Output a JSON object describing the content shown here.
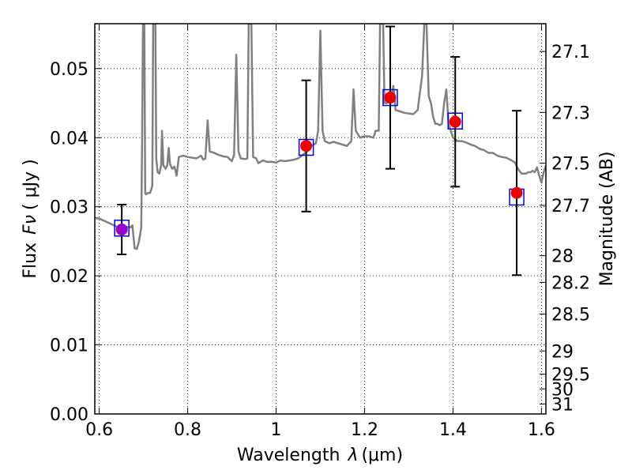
{
  "chart_data": {
    "type": "scatter",
    "title": "",
    "xlabel": "Wavelength",
    "xlabel_symbol": "λ",
    "xlabel_unit": "(μm)",
    "ylabel": "Flux",
    "ylabel_symbol": "Fν",
    "ylabel_unit": "( μJy )",
    "y2label": "Magnitude (AB)",
    "xlim": [
      0.59,
      1.61
    ],
    "ylim": [
      0.0,
      0.0565
    ],
    "grid": true,
    "x_ticks": [
      {
        "value": 0.6,
        "label": "0.6"
      },
      {
        "value": 0.8,
        "label": "0.8"
      },
      {
        "value": 1.0,
        "label": "1"
      },
      {
        "value": 1.2,
        "label": "1.2"
      },
      {
        "value": 1.4,
        "label": "1.4"
      },
      {
        "value": 1.6,
        "label": "1.6"
      }
    ],
    "y_ticks": [
      {
        "value": 0.0,
        "label": "0.00"
      },
      {
        "value": 0.01,
        "label": "0.01"
      },
      {
        "value": 0.02,
        "label": "0.02"
      },
      {
        "value": 0.03,
        "label": "0.03"
      },
      {
        "value": 0.04,
        "label": "0.04"
      },
      {
        "value": 0.05,
        "label": "0.05"
      }
    ],
    "mag_ticks": [
      {
        "value": 27.1,
        "label": "27.1"
      },
      {
        "value": 27.3,
        "label": "27.3"
      },
      {
        "value": 27.5,
        "label": "27.5"
      },
      {
        "value": 27.7,
        "label": "27.7"
      },
      {
        "value": 28.0,
        "label": "28"
      },
      {
        "value": 28.2,
        "label": "28.2"
      },
      {
        "value": 28.5,
        "label": "28.5"
      },
      {
        "value": 29.0,
        "label": "29"
      },
      {
        "value": 29.5,
        "label": "29.5"
      },
      {
        "value": 30.0,
        "label": "30"
      },
      {
        "value": 31.0,
        "label": "31"
      }
    ],
    "observed": [
      {
        "x": 0.651,
        "y": 0.0267,
        "yerr": 0.0036,
        "color": "#9900cc"
      },
      {
        "x": 1.068,
        "y": 0.0388,
        "yerr": 0.0095,
        "color": "#ee0000"
      },
      {
        "x": 1.258,
        "y": 0.0458,
        "yerr": 0.0103,
        "color": "#ee0000"
      },
      {
        "x": 1.405,
        "y": 0.0423,
        "yerr": 0.0094,
        "color": "#ee0000"
      },
      {
        "x": 1.544,
        "y": 0.032,
        "yerr": 0.0119,
        "color": "#ee0000"
      }
    ],
    "model_points": [
      {
        "x": 0.651,
        "y": 0.0269
      },
      {
        "x": 1.068,
        "y": 0.0386
      },
      {
        "x": 1.258,
        "y": 0.0458
      },
      {
        "x": 1.405,
        "y": 0.0424
      },
      {
        "x": 1.544,
        "y": 0.0314
      }
    ],
    "spectrum": {
      "color": "#808080",
      "points": [
        [
          0.59,
          0.0284
        ],
        [
          0.6,
          0.0283
        ],
        [
          0.61,
          0.028
        ],
        [
          0.62,
          0.0277
        ],
        [
          0.63,
          0.0274
        ],
        [
          0.64,
          0.0271
        ],
        [
          0.65,
          0.027
        ],
        [
          0.66,
          0.0271
        ],
        [
          0.67,
          0.027
        ],
        [
          0.675,
          0.0273
        ],
        [
          0.68,
          0.024
        ],
        [
          0.685,
          0.0239
        ],
        [
          0.69,
          0.025
        ],
        [
          0.695,
          0.027
        ],
        [
          0.697,
          0.04
        ],
        [
          0.699,
          0.0565
        ],
        [
          0.702,
          0.0565
        ],
        [
          0.704,
          0.032
        ],
        [
          0.706,
          0.0318
        ],
        [
          0.71,
          0.032
        ],
        [
          0.715,
          0.032
        ],
        [
          0.72,
          0.033
        ],
        [
          0.722,
          0.0565
        ],
        [
          0.727,
          0.0565
        ],
        [
          0.729,
          0.037
        ],
        [
          0.732,
          0.035
        ],
        [
          0.736,
          0.0348
        ],
        [
          0.74,
          0.036
        ],
        [
          0.742,
          0.041
        ],
        [
          0.745,
          0.036
        ],
        [
          0.75,
          0.0355
        ],
        [
          0.754,
          0.036
        ],
        [
          0.757,
          0.0385
        ],
        [
          0.76,
          0.0362
        ],
        [
          0.765,
          0.0355
        ],
        [
          0.77,
          0.0358
        ],
        [
          0.775,
          0.0345
        ],
        [
          0.78,
          0.0372
        ],
        [
          0.79,
          0.0374
        ],
        [
          0.8,
          0.0372
        ],
        [
          0.81,
          0.0371
        ],
        [
          0.82,
          0.037
        ],
        [
          0.83,
          0.0374
        ],
        [
          0.835,
          0.0368
        ],
        [
          0.84,
          0.037
        ],
        [
          0.845,
          0.0425
        ],
        [
          0.85,
          0.038
        ],
        [
          0.86,
          0.0378
        ],
        [
          0.87,
          0.0375
        ],
        [
          0.88,
          0.0373
        ],
        [
          0.89,
          0.0372
        ],
        [
          0.9,
          0.0366
        ],
        [
          0.905,
          0.0375
        ],
        [
          0.91,
          0.052
        ],
        [
          0.915,
          0.038
        ],
        [
          0.92,
          0.037
        ],
        [
          0.93,
          0.0369
        ],
        [
          0.935,
          0.037
        ],
        [
          0.938,
          0.0565
        ],
        [
          0.944,
          0.0565
        ],
        [
          0.948,
          0.0372
        ],
        [
          0.955,
          0.037
        ],
        [
          0.96,
          0.0363
        ],
        [
          0.97,
          0.0367
        ],
        [
          0.98,
          0.0365
        ],
        [
          0.99,
          0.0365
        ],
        [
          1.0,
          0.0364
        ],
        [
          1.01,
          0.0367
        ],
        [
          1.02,
          0.0366
        ],
        [
          1.03,
          0.0367
        ],
        [
          1.04,
          0.0368
        ],
        [
          1.05,
          0.037
        ],
        [
          1.06,
          0.0375
        ],
        [
          1.07,
          0.038
        ],
        [
          1.08,
          0.0388
        ],
        [
          1.09,
          0.0392
        ],
        [
          1.095,
          0.041
        ],
        [
          1.1,
          0.0555
        ],
        [
          1.105,
          0.041
        ],
        [
          1.11,
          0.0395
        ],
        [
          1.12,
          0.0392
        ],
        [
          1.13,
          0.0394
        ],
        [
          1.14,
          0.0392
        ],
        [
          1.15,
          0.039
        ],
        [
          1.16,
          0.0388
        ],
        [
          1.17,
          0.0395
        ],
        [
          1.175,
          0.047
        ],
        [
          1.18,
          0.041
        ],
        [
          1.19,
          0.04
        ],
        [
          1.2,
          0.0402
        ],
        [
          1.21,
          0.0402
        ],
        [
          1.22,
          0.04
        ],
        [
          1.225,
          0.041
        ],
        [
          1.232,
          0.041
        ],
        [
          1.235,
          0.0565
        ],
        [
          1.242,
          0.0565
        ],
        [
          1.245,
          0.045
        ],
        [
          1.25,
          0.045
        ],
        [
          1.26,
          0.0455
        ],
        [
          1.265,
          0.0475
        ],
        [
          1.27,
          0.044
        ],
        [
          1.28,
          0.0438
        ],
        [
          1.29,
          0.0436
        ],
        [
          1.3,
          0.0435
        ],
        [
          1.31,
          0.0434
        ],
        [
          1.32,
          0.044
        ],
        [
          1.33,
          0.049
        ],
        [
          1.335,
          0.0565
        ],
        [
          1.34,
          0.0565
        ],
        [
          1.345,
          0.046
        ],
        [
          1.35,
          0.045
        ],
        [
          1.355,
          0.043
        ],
        [
          1.36,
          0.042
        ],
        [
          1.365,
          0.042
        ],
        [
          1.37,
          0.0418
        ],
        [
          1.375,
          0.042
        ],
        [
          1.38,
          0.045
        ],
        [
          1.385,
          0.047
        ],
        [
          1.39,
          0.042
        ],
        [
          1.4,
          0.04
        ],
        [
          1.41,
          0.0395
        ],
        [
          1.42,
          0.0395
        ],
        [
          1.43,
          0.0393
        ],
        [
          1.44,
          0.039
        ],
        [
          1.45,
          0.0388
        ],
        [
          1.46,
          0.0384
        ],
        [
          1.47,
          0.0382
        ],
        [
          1.48,
          0.0378
        ],
        [
          1.49,
          0.0378
        ],
        [
          1.5,
          0.0374
        ],
        [
          1.51,
          0.0372
        ],
        [
          1.52,
          0.0371
        ],
        [
          1.53,
          0.0368
        ],
        [
          1.54,
          0.0364
        ],
        [
          1.545,
          0.0357
        ],
        [
          1.55,
          0.0352
        ],
        [
          1.555,
          0.0348
        ],
        [
          1.56,
          0.0348
        ],
        [
          1.565,
          0.0348
        ],
        [
          1.57,
          0.035
        ],
        [
          1.575,
          0.035
        ],
        [
          1.58,
          0.0352
        ],
        [
          1.585,
          0.035
        ],
        [
          1.59,
          0.0357
        ],
        [
          1.595,
          0.0345
        ],
        [
          1.6,
          0.0335
        ],
        [
          1.605,
          0.035
        ],
        [
          1.61,
          0.036
        ]
      ]
    }
  }
}
